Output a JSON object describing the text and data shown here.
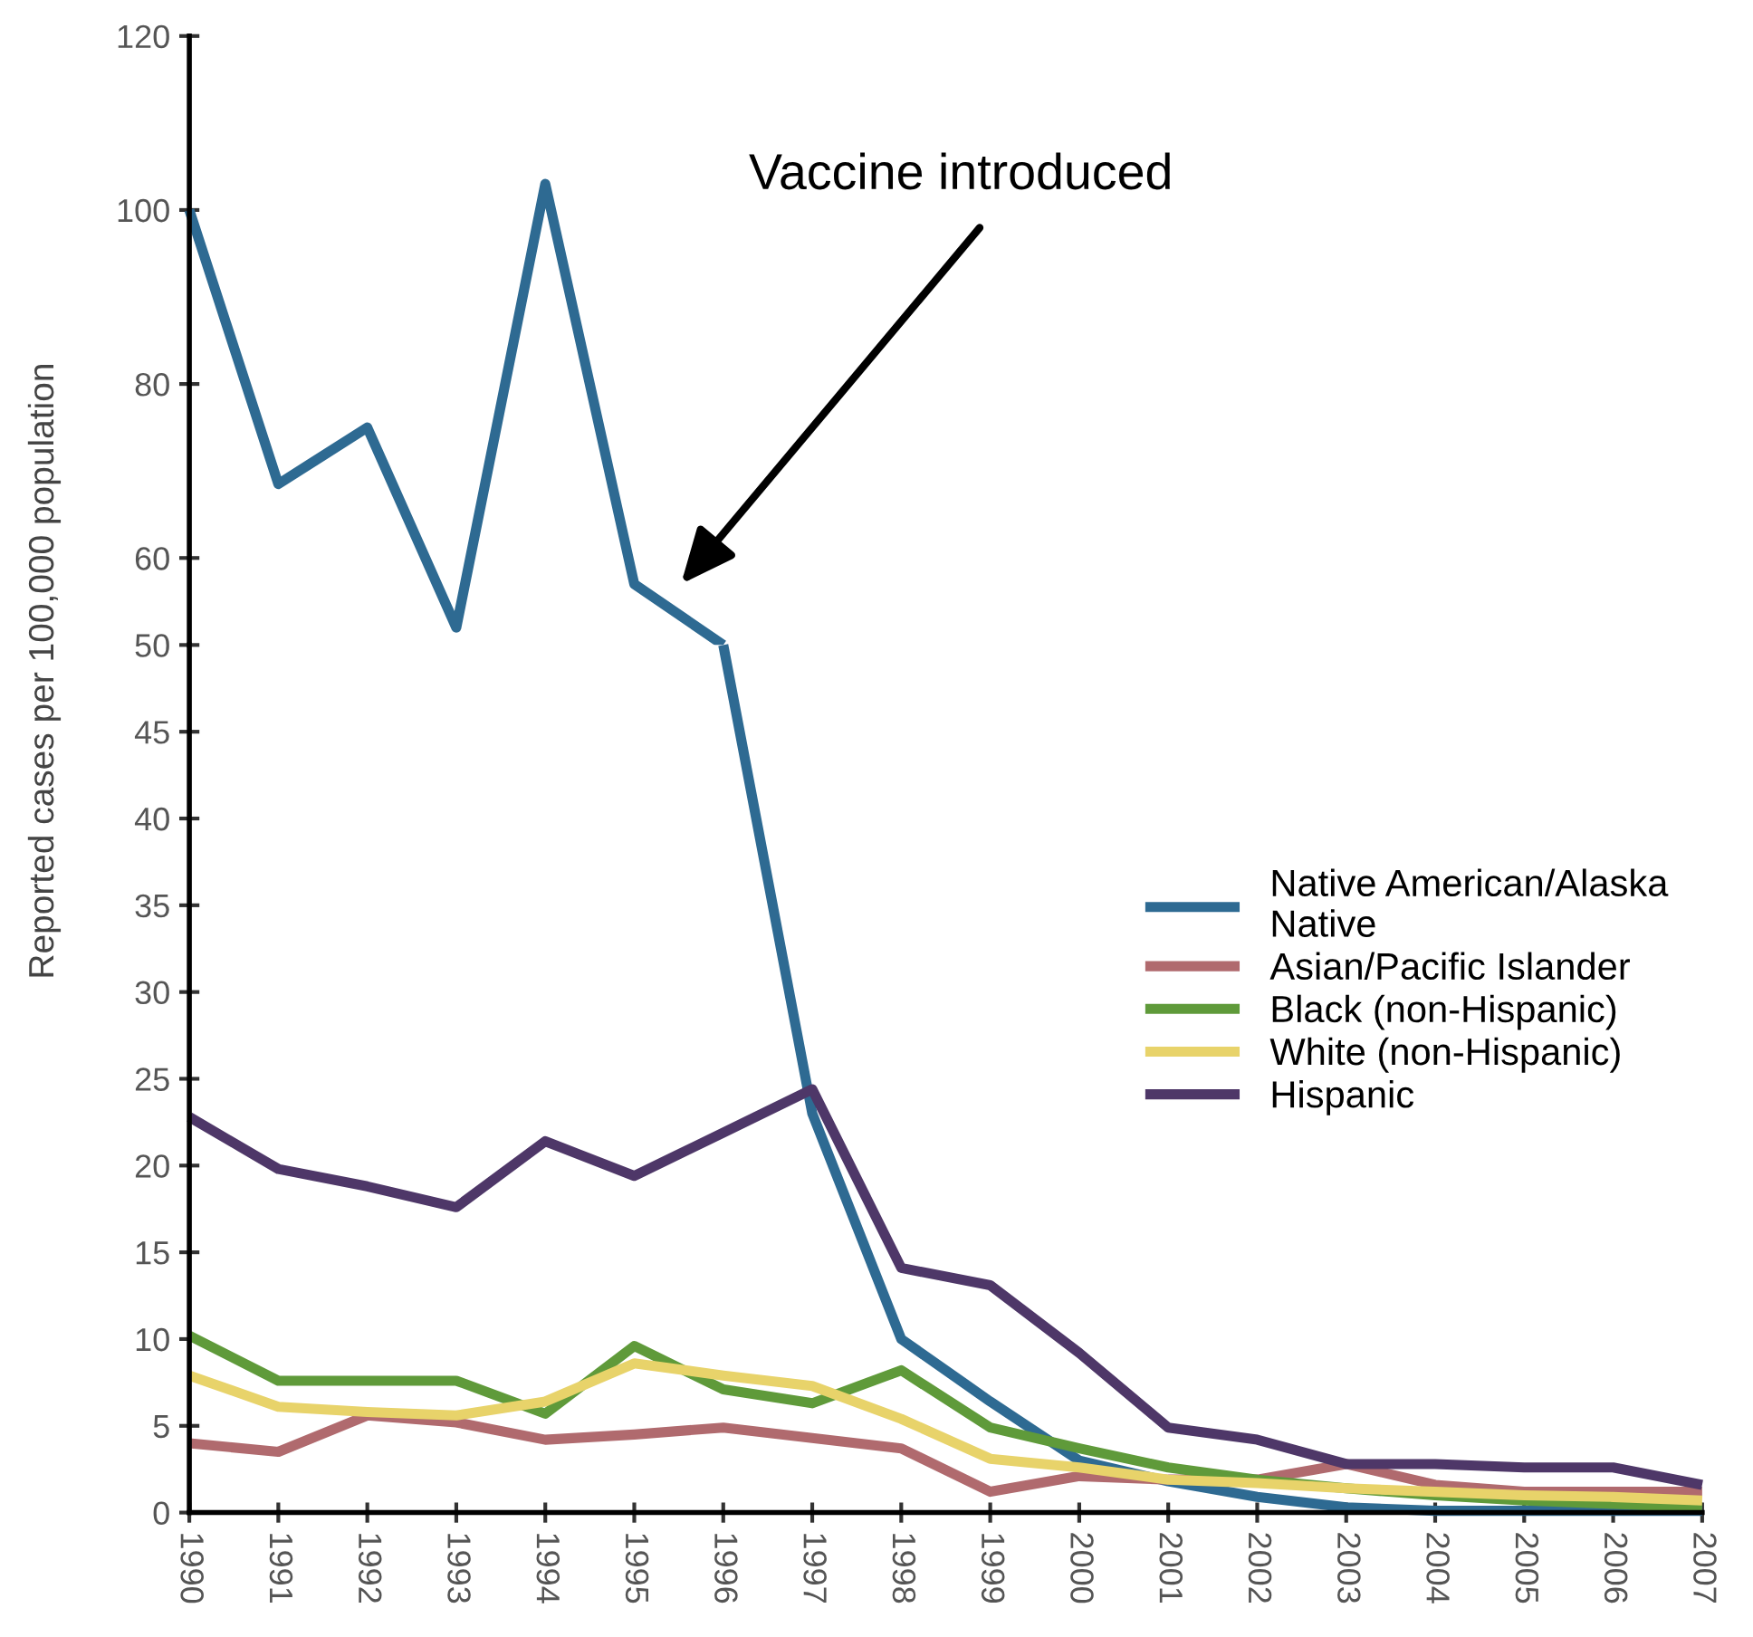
{
  "chart_data": [
    {
      "type": "line",
      "x": [
        1990,
        1991,
        1992,
        1993,
        1994,
        1995,
        1996
      ],
      "series": [
        {
          "color": "#2e6a92",
          "values": [
            100,
            68.5,
            75,
            52,
            103,
            57,
            50
          ]
        }
      ],
      "xlim": [
        1990,
        2007
      ],
      "ylim": [
        50,
        120
      ],
      "yticks": [
        60,
        80,
        100,
        120
      ],
      "tick_labels": "y",
      "annotations": [
        "Vaccine introduced"
      ],
      "grid": false,
      "marker": "none",
      "line_style": "solid"
    },
    {
      "type": "line",
      "ylabel": "Reported cases per 100,000 population",
      "x": [
        1990,
        1991,
        1992,
        1993,
        1994,
        1995,
        1996,
        1997,
        1998,
        1999,
        2000,
        2001,
        2002,
        2003,
        2004,
        2005,
        2006,
        2007
      ],
      "series": [
        {
          "name": "Native American/Alaska\nNative",
          "color": "#2e6a92",
          "values": [
            null,
            null,
            null,
            null,
            null,
            null,
            50,
            23,
            10.0,
            6.4,
            3.0,
            1.8,
            0.9,
            0.3,
            0.1,
            0.1,
            0.1,
            0.1
          ]
        },
        {
          "name": "Asian/Pacific Islander",
          "color": "#b06a6e",
          "values": [
            4.0,
            3.5,
            5.6,
            5.2,
            4.2,
            4.5,
            4.9,
            4.3,
            3.7,
            1.2,
            2.1,
            1.9,
            1.9,
            2.8,
            1.6,
            1.2,
            1.2,
            1.2
          ]
        },
        {
          "name": "Black (non-Hispanic)",
          "color": "#5f9a3a",
          "values": [
            10.2,
            7.6,
            7.6,
            7.6,
            5.7,
            9.6,
            7.1,
            6.3,
            8.2,
            4.9,
            3.7,
            2.6,
            1.9,
            1.4,
            1.0,
            0.7,
            0.5,
            0.3
          ]
        },
        {
          "name": "White (non-Hispanic)",
          "color": "#e8d36a",
          "values": [
            7.9,
            6.1,
            5.8,
            5.6,
            6.4,
            8.6,
            7.9,
            7.3,
            5.4,
            3.1,
            2.6,
            1.9,
            1.7,
            1.4,
            1.2,
            1.0,
            0.9,
            0.7
          ]
        },
        {
          "name": "Hispanic",
          "color": "#4e3768",
          "values": [
            22.8,
            19.8,
            18.8,
            17.6,
            21.4,
            19.4,
            21.9,
            24.4,
            14.1,
            13.1,
            9.2,
            4.9,
            4.2,
            2.8,
            2.8,
            2.6,
            2.6,
            1.6
          ]
        }
      ],
      "xlim": [
        1990,
        2007
      ],
      "xticks": [
        1990,
        1991,
        1992,
        1993,
        1994,
        1995,
        1996,
        1997,
        1998,
        1999,
        2000,
        2001,
        2002,
        2003,
        2004,
        2005,
        2006,
        2007
      ],
      "ylim": [
        0,
        50
      ],
      "yticks": [
        0,
        5,
        10,
        15,
        20,
        25,
        30,
        35,
        40,
        45,
        50
      ],
      "legend": "right",
      "grid": false,
      "marker": "none",
      "line_style": "solid"
    }
  ]
}
